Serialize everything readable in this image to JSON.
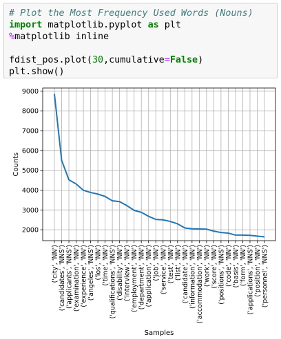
{
  "code": {
    "line1": "# Plot the Most Frequency Used Words (Nouns)",
    "line2_kw1": "import",
    "line2_mid": " matplotlib.pyplot ",
    "line2_kw2": "as",
    "line2_end": " plt",
    "line3_magic": "%",
    "line3_rest": "matplotlib inline",
    "line5_a": "fdist_pos.plot(",
    "line5_num": "30",
    "line5_b": ",cumulative",
    "line5_eq": "=",
    "line5_bool": "False",
    "line5_c": ")",
    "line6": "plt.show()"
  },
  "chart_data": {
    "type": "line",
    "xlabel": "Samples",
    "ylabel": "Counts",
    "ylim": [
      1450,
      9150
    ],
    "yticks": [
      2000,
      3000,
      4000,
      5000,
      6000,
      7000,
      8000,
      9000
    ],
    "grid": true,
    "line_color": "#1f77b4",
    "categories": [
      "('city', 'NN')",
      "('candidates', 'NNS')",
      "('applicants', 'NNS')",
      "('examination', 'NN')",
      "('experience', 'NN')",
      "('angeles', 'NNS')",
      "('los', 'NN')",
      "('time', 'NN')",
      "('qualifications', 'NNS')",
      "('disability', 'NN')",
      "('interview', 'NN')",
      "('employment', 'NN')",
      "('department', 'NN')",
      "('application', 'NN')",
      "('job', 'NN')",
      "('service', 'NN')",
      "('test', 'NN')",
      "('list', 'NN')",
      "('candidate', 'NN')",
      "('information', 'NN')",
      "('accommodation', 'NN')",
      "('work', 'NN')",
      "('score', 'NN')",
      "('positions', 'NNS')",
      "('code', 'NN')",
      "('basis', 'NN')",
      "('form', 'NN')",
      "('applications', 'NNS')",
      "('position', 'NN')",
      "('personnel', 'NNS')"
    ],
    "values": [
      8850,
      5500,
      4520,
      4310,
      3990,
      3880,
      3800,
      3680,
      3460,
      3420,
      3220,
      2980,
      2880,
      2680,
      2520,
      2500,
      2420,
      2300,
      2090,
      2050,
      2040,
      2030,
      1930,
      1860,
      1830,
      1730,
      1730,
      1720,
      1680,
      1640
    ]
  }
}
